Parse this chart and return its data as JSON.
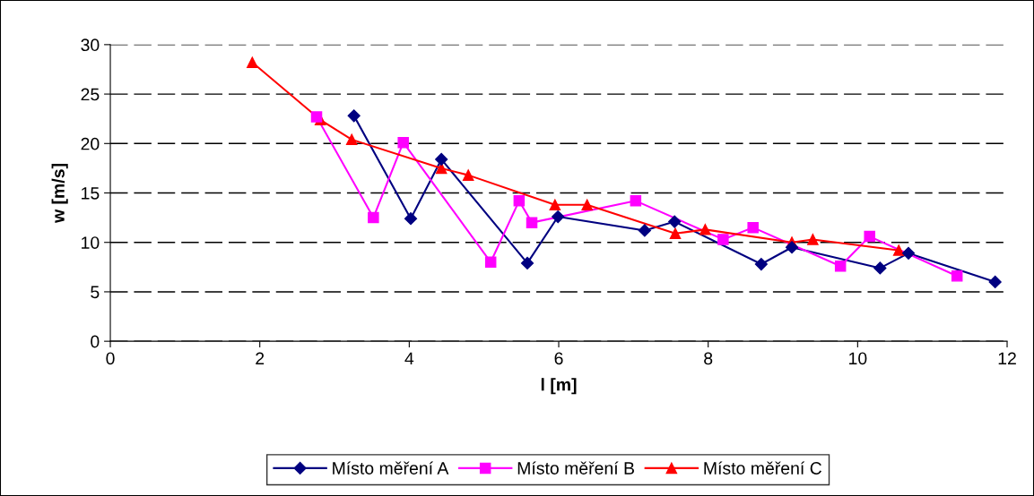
{
  "chart_data": {
    "type": "line",
    "xlabel": "l [m]",
    "ylabel": "w [m/s]",
    "xlim": [
      0,
      12
    ],
    "xticks": [
      0,
      2,
      4,
      6,
      8,
      10,
      12
    ],
    "ylim": [
      0,
      30
    ],
    "yticks": [
      0,
      5,
      10,
      15,
      20,
      25,
      30
    ],
    "grid": "y",
    "legend": "bottom",
    "line_style": "solid",
    "series": [
      {
        "name": "Místo měření A",
        "color": "#000080",
        "marker": "diamond",
        "x": [
          3.26,
          4.02,
          4.43,
          5.58,
          5.99,
          7.15,
          7.55,
          8.71,
          9.12,
          10.3,
          10.68,
          11.84
        ],
        "values": [
          22.8,
          12.4,
          18.4,
          7.9,
          12.6,
          11.2,
          12.1,
          7.8,
          9.5,
          7.4,
          8.9,
          6.0
        ]
      },
      {
        "name": "Místo měření B",
        "color": "#ff00ff",
        "marker": "square",
        "x": [
          2.76,
          3.52,
          3.92,
          5.09,
          5.47,
          5.64,
          7.03,
          8.2,
          8.6,
          9.77,
          10.16,
          11.33
        ],
        "values": [
          22.7,
          12.5,
          20.1,
          8.0,
          14.2,
          12.0,
          14.2,
          10.3,
          11.5,
          7.6,
          10.6,
          6.6
        ]
      },
      {
        "name": "Místo měření C",
        "color": "#ff0000",
        "marker": "triangle",
        "x": [
          1.9,
          2.81,
          3.23,
          4.43,
          4.79,
          5.95,
          6.38,
          7.56,
          7.96,
          9.12,
          9.4,
          10.55
        ],
        "values": [
          28.2,
          22.4,
          20.4,
          17.5,
          16.8,
          13.8,
          13.8,
          10.9,
          11.3,
          10.0,
          10.3,
          9.2
        ]
      }
    ]
  }
}
